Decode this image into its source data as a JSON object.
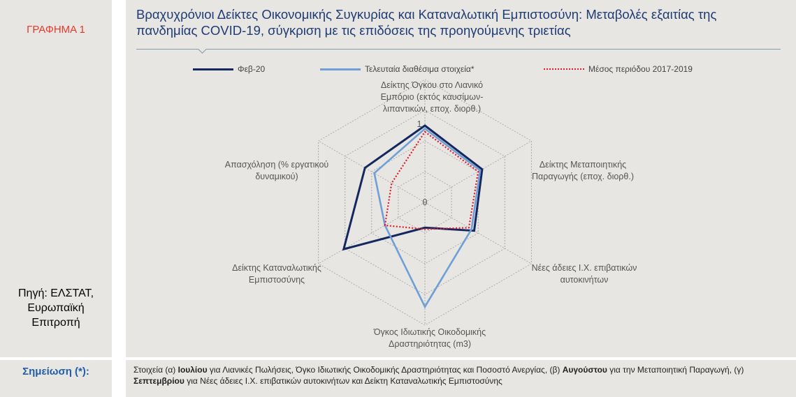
{
  "figure_label": "ΓΡΑΦΗΜΑ 1",
  "source": [
    "Πηγή: ΕΛΣΤΑΤ,",
    "Ευρωπαϊκή",
    "Επιτροπή"
  ],
  "note_label": "Σημείωση (*):",
  "note_parts": [
    {
      "text": "Στοιχεία (α) ",
      "bold": false
    },
    {
      "text": "Ιουλίου",
      "bold": true
    },
    {
      "text": " για Λιανικές Πωλήσεις, Όγκο Ιδιωτικής Οικοδομικής Δραστηριότητας και Ποσοστό Ανεργίας, (β) ",
      "bold": false
    },
    {
      "text": "Αυγούστου",
      "bold": true
    },
    {
      "text": " για την Μεταποιητική Παραγωγή, (γ) ",
      "bold": false
    },
    {
      "text": "Σεπτεμβρίου",
      "bold": true
    },
    {
      "text": " για Νέες άδειες Ι.Χ. επιβατικών αυτοκινήτων και Δείκτη Καταναλωτικής Εμπιστοσύνης",
      "bold": false
    }
  ],
  "chart_data": {
    "type": "radar",
    "title": "Βραχυχρόνιοι Δείκτες Οικονομικής Συγκυρίας και Καταναλωτική Εμπιστοσύνη: Μεταβολές εξαιτίας της πανδημίας COVID-19, σύγκριση με τις επιδόσεις της προηγούμενης τριετίας",
    "axes": [
      [
        "Δείκτης Όγκου στο Λιανικό",
        "Εμπόριο (εκτός καυσίμων-",
        "λιπαντικών, εποχ. διορθ.)"
      ],
      [
        "Δείκτης Μεταποιητικής",
        "Παραγωγής (εποχ. διορθ.)"
      ],
      [
        "Νέες άδειες Ι.Χ. επιβατικών",
        "αυτοκινήτων"
      ],
      [
        "Όγκος Ιδιωτικής Οικοδομικής",
        "Δραστηριότητας (m3)"
      ],
      [
        "Δείκτης Καταναλωτικής",
        "Εμπιστοσύνης"
      ],
      [
        "Απασχόληση (% εργατικού",
        "δυναμικού)"
      ]
    ],
    "rlim": [
      0,
      1
    ],
    "tick_labels": [
      "0",
      "1"
    ],
    "grid": true,
    "legend_position": "top",
    "series": [
      {
        "name": "Φεβ-20",
        "values": [
          1.0,
          0.86,
          0.74,
          0.33,
          1.22,
          0.9
        ],
        "color": "#14275e",
        "style": "solid"
      },
      {
        "name": "Τελευταία διαθέσιμα στοιχεία*",
        "values": [
          0.96,
          0.83,
          0.7,
          1.36,
          0.6,
          0.76
        ],
        "color": "#6f9fd6",
        "style": "solid"
      },
      {
        "name": "Μέσος περιόδου 2017-2019",
        "values": [
          0.92,
          0.8,
          0.66,
          0.35,
          0.6,
          0.5
        ],
        "color": "#e0192a",
        "style": "dotted"
      }
    ]
  }
}
